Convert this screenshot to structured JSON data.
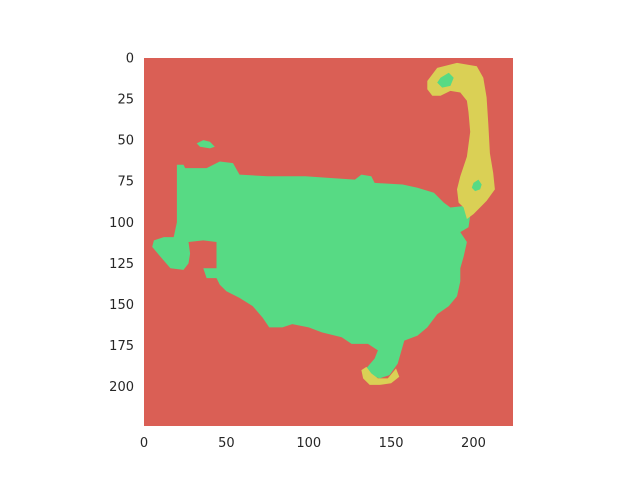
{
  "chart_data": {
    "type": "heatmap",
    "title": "",
    "xlabel": "",
    "ylabel": "",
    "xlim": [
      0,
      224
    ],
    "ylim": [
      224,
      0
    ],
    "x_ticks": [
      0,
      50,
      100,
      150,
      200
    ],
    "y_ticks": [
      0,
      25,
      50,
      75,
      100,
      125,
      150,
      175,
      200
    ],
    "grid": false,
    "legend": "none",
    "colors": {
      "background_class": "#da5f55",
      "green_class": "#57da84",
      "yellow_class": "#dad055",
      "axis_spine": "#ffffff",
      "tick_text": "#262626"
    },
    "regions": [
      {
        "class": "green_class",
        "polygon": [
          [
            20,
            65
          ],
          [
            24,
            65
          ],
          [
            25,
            67
          ],
          [
            38,
            67
          ],
          [
            46,
            63
          ],
          [
            54,
            64
          ],
          [
            58,
            71
          ],
          [
            75,
            72
          ],
          [
            98,
            72
          ],
          [
            112,
            73
          ],
          [
            128,
            74
          ],
          [
            132,
            71
          ],
          [
            138,
            72
          ],
          [
            140,
            76
          ],
          [
            157,
            77
          ],
          [
            166,
            79
          ],
          [
            176,
            82
          ],
          [
            182,
            88
          ],
          [
            186,
            91
          ],
          [
            195,
            90
          ],
          [
            198,
            96
          ],
          [
            197,
            103
          ],
          [
            192,
            106
          ],
          [
            196,
            112
          ],
          [
            194,
            121
          ],
          [
            192,
            128
          ],
          [
            192,
            136
          ],
          [
            190,
            145
          ],
          [
            185,
            151
          ],
          [
            178,
            156
          ],
          [
            172,
            164
          ],
          [
            166,
            169
          ],
          [
            158,
            172
          ],
          [
            156,
            179
          ],
          [
            154,
            186
          ],
          [
            149,
            193
          ],
          [
            143,
            195
          ],
          [
            137,
            193
          ],
          [
            134,
            190
          ],
          [
            140,
            183
          ],
          [
            142,
            178
          ],
          [
            136,
            174
          ],
          [
            126,
            174
          ],
          [
            120,
            170
          ],
          [
            108,
            167
          ],
          [
            100,
            164
          ],
          [
            90,
            162
          ],
          [
            84,
            164
          ],
          [
            76,
            164
          ],
          [
            72,
            158
          ],
          [
            66,
            151
          ],
          [
            58,
            146
          ],
          [
            50,
            142
          ],
          [
            46,
            138
          ],
          [
            44,
            134
          ],
          [
            38,
            134
          ],
          [
            36,
            128
          ],
          [
            44,
            128
          ],
          [
            44,
            112
          ],
          [
            36,
            111
          ],
          [
            27,
            112
          ],
          [
            28,
            119
          ],
          [
            27,
            125
          ],
          [
            24,
            129
          ],
          [
            16,
            128
          ],
          [
            10,
            121
          ],
          [
            5,
            115
          ],
          [
            6,
            111
          ],
          [
            12,
            109
          ],
          [
            18,
            109
          ],
          [
            20,
            100
          ],
          [
            20,
            88
          ]
        ]
      },
      {
        "class": "green_class",
        "polygon": [
          [
            32,
            52
          ],
          [
            36,
            50
          ],
          [
            40,
            51
          ],
          [
            43,
            54
          ],
          [
            40,
            55
          ],
          [
            34,
            54
          ]
        ]
      },
      {
        "class": "yellow_class",
        "polygon": [
          [
            172,
            14
          ],
          [
            178,
            6
          ],
          [
            190,
            3
          ],
          [
            202,
            5
          ],
          [
            206,
            12
          ],
          [
            208,
            24
          ],
          [
            209,
            40
          ],
          [
            210,
            58
          ],
          [
            212,
            70
          ],
          [
            213,
            80
          ],
          [
            208,
            87
          ],
          [
            200,
            95
          ],
          [
            196,
            98
          ],
          [
            194,
            91
          ],
          [
            191,
            88
          ],
          [
            190,
            80
          ],
          [
            192,
            72
          ],
          [
            196,
            60
          ],
          [
            198,
            45
          ],
          [
            197,
            33
          ],
          [
            196,
            26
          ],
          [
            192,
            21
          ],
          [
            186,
            20
          ],
          [
            180,
            23
          ],
          [
            175,
            23
          ],
          [
            172,
            19
          ]
        ]
      },
      {
        "class": "yellow_class",
        "polygon": [
          [
            132,
            190
          ],
          [
            135,
            188
          ],
          [
            138,
            192
          ],
          [
            142,
            195
          ],
          [
            148,
            195
          ],
          [
            153,
            189
          ],
          [
            155,
            194
          ],
          [
            150,
            198
          ],
          [
            143,
            199
          ],
          [
            137,
            199
          ],
          [
            133,
            195
          ]
        ]
      },
      {
        "class": "green_class",
        "polygon": [
          [
            180,
            12
          ],
          [
            185,
            9
          ],
          [
            188,
            12
          ],
          [
            186,
            17
          ],
          [
            181,
            18
          ],
          [
            178,
            15
          ]
        ]
      },
      {
        "class": "green_class",
        "polygon": [
          [
            200,
            76
          ],
          [
            203,
            74
          ],
          [
            205,
            77
          ],
          [
            204,
            80
          ],
          [
            201,
            81
          ],
          [
            199,
            79
          ]
        ]
      }
    ]
  }
}
